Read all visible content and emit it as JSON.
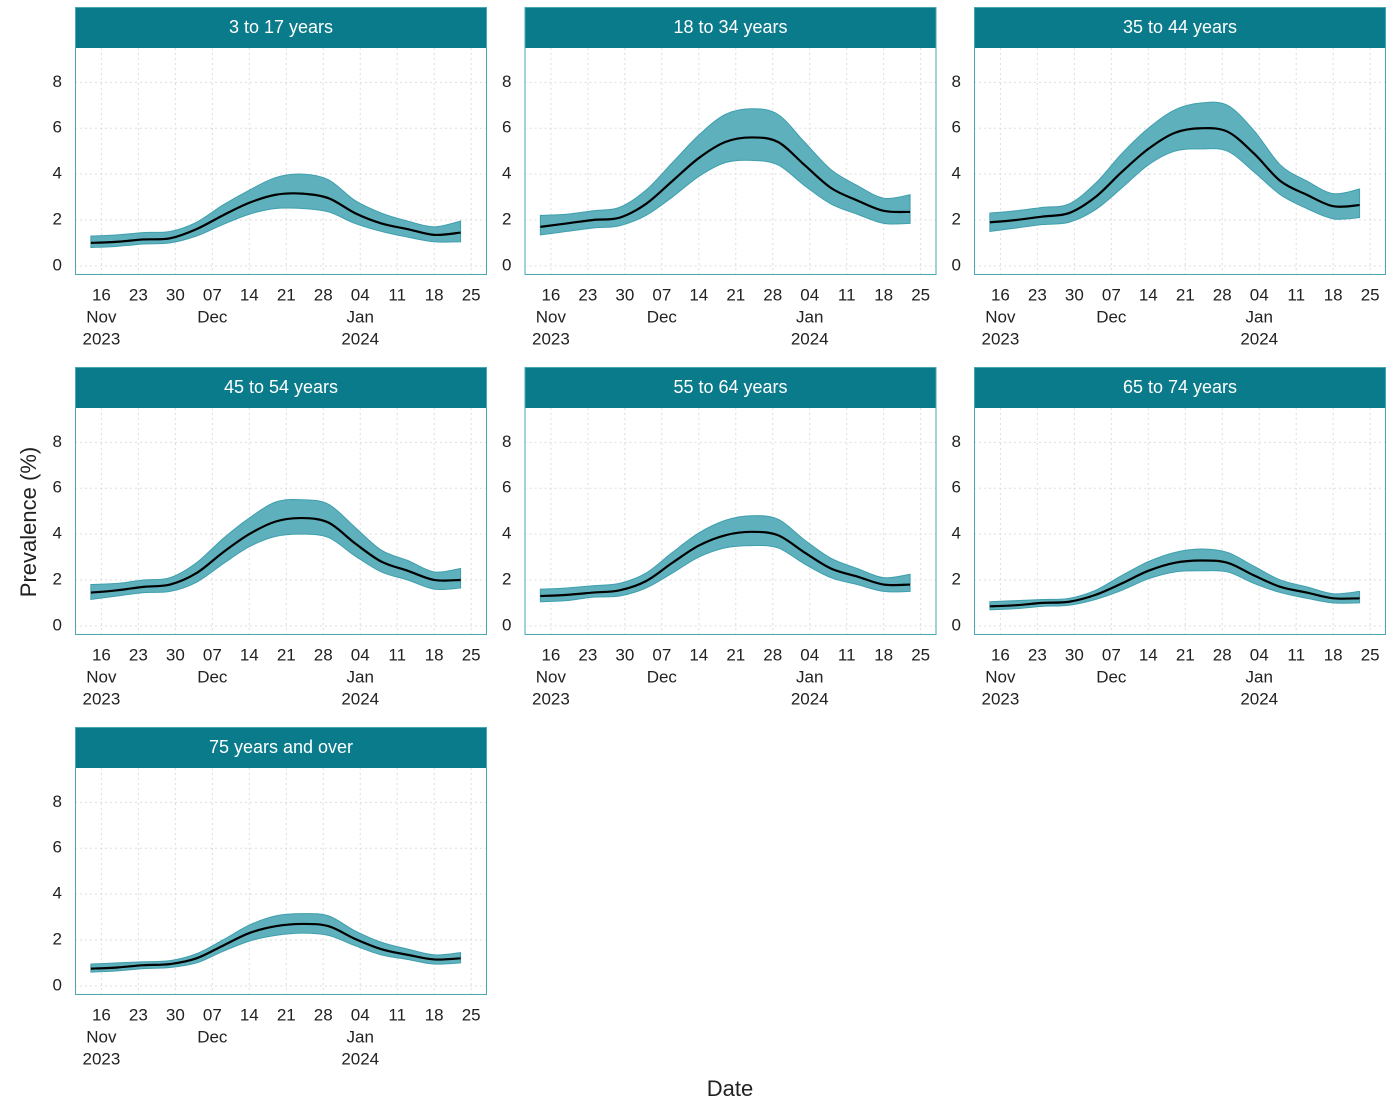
{
  "ylabel": "Prevalence (%)",
  "xlabel": "Date",
  "chart_data": [
    {
      "type": "line",
      "title": "3 to 17 years",
      "x": [
        "2023-11-14",
        "2023-11-19",
        "2023-11-24",
        "2023-11-29",
        "2023-12-04",
        "2023-12-09",
        "2023-12-14",
        "2023-12-19",
        "2023-12-24",
        "2023-12-29",
        "2024-01-03",
        "2024-01-08",
        "2024-01-13",
        "2024-01-18",
        "2024-01-23"
      ],
      "values": [
        1.0,
        1.05,
        1.15,
        1.2,
        1.6,
        2.2,
        2.75,
        3.1,
        3.15,
        2.95,
        2.3,
        1.85,
        1.6,
        1.35,
        1.45
      ],
      "lower": [
        0.8,
        0.85,
        0.95,
        1.0,
        1.3,
        1.8,
        2.25,
        2.5,
        2.5,
        2.35,
        1.85,
        1.5,
        1.25,
        1.05,
        1.05
      ],
      "upper": [
        1.3,
        1.35,
        1.45,
        1.5,
        1.9,
        2.65,
        3.3,
        3.85,
        4.0,
        3.75,
        2.85,
        2.3,
        1.95,
        1.7,
        1.95
      ],
      "color": "#000000",
      "band_color": "#5eb0bd",
      "xlim": [
        "2023-11-11",
        "2024-01-28"
      ],
      "xticks": [
        {
          "value": "2023-11-16",
          "label": "16"
        },
        {
          "value": "2023-11-23",
          "label": "23"
        },
        {
          "value": "2023-11-30",
          "label": "30"
        },
        {
          "value": "2023-12-07",
          "label": "07"
        },
        {
          "value": "2023-12-14",
          "label": "14"
        },
        {
          "value": "2023-12-21",
          "label": "21"
        },
        {
          "value": "2023-12-28",
          "label": "28"
        },
        {
          "value": "2024-01-04",
          "label": "04"
        },
        {
          "value": "2024-01-11",
          "label": "11"
        },
        {
          "value": "2024-01-18",
          "label": "18"
        },
        {
          "value": "2024-01-25",
          "label": "25"
        }
      ],
      "xtick_months": [
        {
          "value": "2023-11-16",
          "label": "Nov"
        },
        {
          "value": "2023-12-07",
          "label": "Dec"
        },
        {
          "value": "2024-01-04",
          "label": "Jan"
        }
      ],
      "xtick_years": [
        {
          "value": "2023-11-16",
          "label": "2023"
        },
        {
          "value": "2024-01-04",
          "label": "2024"
        }
      ],
      "ylim": [
        -0.4,
        9.5
      ],
      "yticks": [
        0,
        2,
        4,
        6,
        8
      ],
      "grid": true
    },
    {
      "type": "line",
      "title": "18 to 34 years",
      "x": [
        "2023-11-14",
        "2023-11-19",
        "2023-11-24",
        "2023-11-29",
        "2023-12-04",
        "2023-12-09",
        "2023-12-14",
        "2023-12-19",
        "2023-12-24",
        "2023-12-29",
        "2024-01-03",
        "2024-01-08",
        "2024-01-13",
        "2024-01-18",
        "2024-01-23"
      ],
      "values": [
        1.7,
        1.85,
        2.0,
        2.1,
        2.7,
        3.7,
        4.7,
        5.4,
        5.6,
        5.4,
        4.4,
        3.4,
        2.85,
        2.4,
        2.35
      ],
      "lower": [
        1.35,
        1.5,
        1.65,
        1.75,
        2.2,
        3.0,
        3.9,
        4.5,
        4.6,
        4.4,
        3.5,
        2.7,
        2.25,
        1.85,
        1.85
      ],
      "upper": [
        2.2,
        2.25,
        2.4,
        2.55,
        3.3,
        4.5,
        5.7,
        6.6,
        6.85,
        6.6,
        5.4,
        4.2,
        3.5,
        2.95,
        3.1
      ],
      "color": "#000000",
      "band_color": "#5eb0bd",
      "xlim": [
        "2023-11-11",
        "2024-01-28"
      ],
      "xticks": [
        {
          "value": "2023-11-16",
          "label": "16"
        },
        {
          "value": "2023-11-23",
          "label": "23"
        },
        {
          "value": "2023-11-30",
          "label": "30"
        },
        {
          "value": "2023-12-07",
          "label": "07"
        },
        {
          "value": "2023-12-14",
          "label": "14"
        },
        {
          "value": "2023-12-21",
          "label": "21"
        },
        {
          "value": "2023-12-28",
          "label": "28"
        },
        {
          "value": "2024-01-04",
          "label": "04"
        },
        {
          "value": "2024-01-11",
          "label": "11"
        },
        {
          "value": "2024-01-18",
          "label": "18"
        },
        {
          "value": "2024-01-25",
          "label": "25"
        }
      ],
      "xtick_months": [
        {
          "value": "2023-11-16",
          "label": "Nov"
        },
        {
          "value": "2023-12-07",
          "label": "Dec"
        },
        {
          "value": "2024-01-04",
          "label": "Jan"
        }
      ],
      "xtick_years": [
        {
          "value": "2023-11-16",
          "label": "2023"
        },
        {
          "value": "2024-01-04",
          "label": "2024"
        }
      ],
      "ylim": [
        -0.4,
        9.5
      ],
      "yticks": [
        0,
        2,
        4,
        6,
        8
      ],
      "grid": true
    },
    {
      "type": "line",
      "title": "35 to 44 years",
      "x": [
        "2023-11-14",
        "2023-11-19",
        "2023-11-24",
        "2023-11-29",
        "2023-12-04",
        "2023-12-09",
        "2023-12-14",
        "2023-12-19",
        "2023-12-24",
        "2023-12-29",
        "2024-01-03",
        "2024-01-08",
        "2024-01-13",
        "2024-01-18",
        "2024-01-23"
      ],
      "values": [
        1.9,
        2.0,
        2.15,
        2.3,
        3.0,
        4.1,
        5.1,
        5.8,
        6.0,
        5.85,
        4.9,
        3.7,
        3.1,
        2.6,
        2.65
      ],
      "lower": [
        1.5,
        1.65,
        1.8,
        1.9,
        2.45,
        3.4,
        4.4,
        5.0,
        5.1,
        5.0,
        4.1,
        3.1,
        2.5,
        2.05,
        2.1
      ],
      "upper": [
        2.3,
        2.4,
        2.55,
        2.7,
        3.6,
        4.9,
        6.0,
        6.8,
        7.1,
        7.0,
        5.9,
        4.4,
        3.7,
        3.15,
        3.35
      ],
      "color": "#000000",
      "band_color": "#5eb0bd",
      "xlim": [
        "2023-11-11",
        "2024-01-28"
      ],
      "xticks": [
        {
          "value": "2023-11-16",
          "label": "16"
        },
        {
          "value": "2023-11-23",
          "label": "23"
        },
        {
          "value": "2023-11-30",
          "label": "30"
        },
        {
          "value": "2023-12-07",
          "label": "07"
        },
        {
          "value": "2023-12-14",
          "label": "14"
        },
        {
          "value": "2023-12-21",
          "label": "21"
        },
        {
          "value": "2023-12-28",
          "label": "28"
        },
        {
          "value": "2024-01-04",
          "label": "04"
        },
        {
          "value": "2024-01-11",
          "label": "11"
        },
        {
          "value": "2024-01-18",
          "label": "18"
        },
        {
          "value": "2024-01-25",
          "label": "25"
        }
      ],
      "xtick_months": [
        {
          "value": "2023-11-16",
          "label": "Nov"
        },
        {
          "value": "2023-12-07",
          "label": "Dec"
        },
        {
          "value": "2024-01-04",
          "label": "Jan"
        }
      ],
      "xtick_years": [
        {
          "value": "2023-11-16",
          "label": "2023"
        },
        {
          "value": "2024-01-04",
          "label": "2024"
        }
      ],
      "ylim": [
        -0.4,
        9.5
      ],
      "yticks": [
        0,
        2,
        4,
        6,
        8
      ],
      "grid": true
    },
    {
      "type": "line",
      "title": "45 to 54 years",
      "x": [
        "2023-11-14",
        "2023-11-19",
        "2023-11-24",
        "2023-11-29",
        "2023-12-04",
        "2023-12-09",
        "2023-12-14",
        "2023-12-19",
        "2023-12-24",
        "2023-12-29",
        "2024-01-03",
        "2024-01-08",
        "2024-01-13",
        "2024-01-18",
        "2024-01-23"
      ],
      "values": [
        1.45,
        1.55,
        1.7,
        1.8,
        2.3,
        3.2,
        4.0,
        4.55,
        4.7,
        4.5,
        3.6,
        2.8,
        2.4,
        2.0,
        2.0
      ],
      "lower": [
        1.15,
        1.3,
        1.45,
        1.5,
        1.9,
        2.7,
        3.45,
        3.9,
        4.0,
        3.85,
        3.05,
        2.35,
        2.0,
        1.6,
        1.65
      ],
      "upper": [
        1.8,
        1.85,
        2.0,
        2.1,
        2.75,
        3.8,
        4.7,
        5.4,
        5.5,
        5.3,
        4.3,
        3.3,
        2.85,
        2.35,
        2.5
      ],
      "color": "#000000",
      "band_color": "#5eb0bd",
      "xlim": [
        "2023-11-11",
        "2024-01-28"
      ],
      "xticks": [
        {
          "value": "2023-11-16",
          "label": "16"
        },
        {
          "value": "2023-11-23",
          "label": "23"
        },
        {
          "value": "2023-11-30",
          "label": "30"
        },
        {
          "value": "2023-12-07",
          "label": "07"
        },
        {
          "value": "2023-12-14",
          "label": "14"
        },
        {
          "value": "2023-12-21",
          "label": "21"
        },
        {
          "value": "2023-12-28",
          "label": "28"
        },
        {
          "value": "2024-01-04",
          "label": "04"
        },
        {
          "value": "2024-01-11",
          "label": "11"
        },
        {
          "value": "2024-01-18",
          "label": "18"
        },
        {
          "value": "2024-01-25",
          "label": "25"
        }
      ],
      "xtick_months": [
        {
          "value": "2023-11-16",
          "label": "Nov"
        },
        {
          "value": "2023-12-07",
          "label": "Dec"
        },
        {
          "value": "2024-01-04",
          "label": "Jan"
        }
      ],
      "xtick_years": [
        {
          "value": "2023-11-16",
          "label": "2023"
        },
        {
          "value": "2024-01-04",
          "label": "2024"
        }
      ],
      "ylim": [
        -0.4,
        9.5
      ],
      "yticks": [
        0,
        2,
        4,
        6,
        8
      ],
      "grid": true
    },
    {
      "type": "line",
      "title": "55 to 64 years",
      "x": [
        "2023-11-14",
        "2023-11-19",
        "2023-11-24",
        "2023-11-29",
        "2023-12-04",
        "2023-12-09",
        "2023-12-14",
        "2023-12-19",
        "2023-12-24",
        "2023-12-29",
        "2024-01-03",
        "2024-01-08",
        "2024-01-13",
        "2024-01-18",
        "2024-01-23"
      ],
      "values": [
        1.3,
        1.35,
        1.45,
        1.55,
        1.95,
        2.75,
        3.5,
        3.95,
        4.1,
        3.95,
        3.2,
        2.5,
        2.15,
        1.8,
        1.8
      ],
      "lower": [
        1.05,
        1.1,
        1.25,
        1.3,
        1.65,
        2.3,
        3.0,
        3.4,
        3.5,
        3.4,
        2.7,
        2.1,
        1.8,
        1.5,
        1.5
      ],
      "upper": [
        1.6,
        1.65,
        1.75,
        1.85,
        2.3,
        3.2,
        4.05,
        4.6,
        4.8,
        4.65,
        3.75,
        2.95,
        2.5,
        2.1,
        2.25
      ],
      "color": "#000000",
      "band_color": "#5eb0bd",
      "xlim": [
        "2023-11-11",
        "2024-01-28"
      ],
      "xticks": [
        {
          "value": "2023-11-16",
          "label": "16"
        },
        {
          "value": "2023-11-23",
          "label": "23"
        },
        {
          "value": "2023-11-30",
          "label": "30"
        },
        {
          "value": "2023-12-07",
          "label": "07"
        },
        {
          "value": "2023-12-14",
          "label": "14"
        },
        {
          "value": "2023-12-21",
          "label": "21"
        },
        {
          "value": "2023-12-28",
          "label": "28"
        },
        {
          "value": "2024-01-04",
          "label": "04"
        },
        {
          "value": "2024-01-11",
          "label": "11"
        },
        {
          "value": "2024-01-18",
          "label": "18"
        },
        {
          "value": "2024-01-25",
          "label": "25"
        }
      ],
      "xtick_months": [
        {
          "value": "2023-11-16",
          "label": "Nov"
        },
        {
          "value": "2023-12-07",
          "label": "Dec"
        },
        {
          "value": "2024-01-04",
          "label": "Jan"
        }
      ],
      "xtick_years": [
        {
          "value": "2023-11-16",
          "label": "2023"
        },
        {
          "value": "2024-01-04",
          "label": "2024"
        }
      ],
      "ylim": [
        -0.4,
        9.5
      ],
      "yticks": [
        0,
        2,
        4,
        6,
        8
      ],
      "grid": true
    },
    {
      "type": "line",
      "title": "65 to 74 years",
      "x": [
        "2023-11-14",
        "2023-11-19",
        "2023-11-24",
        "2023-11-29",
        "2023-12-04",
        "2023-12-09",
        "2023-12-14",
        "2023-12-19",
        "2023-12-24",
        "2023-12-29",
        "2024-01-03",
        "2024-01-08",
        "2024-01-13",
        "2024-01-18",
        "2024-01-23"
      ],
      "values": [
        0.85,
        0.9,
        1.0,
        1.05,
        1.35,
        1.85,
        2.4,
        2.75,
        2.85,
        2.75,
        2.2,
        1.7,
        1.45,
        1.2,
        1.2
      ],
      "lower": [
        0.7,
        0.75,
        0.85,
        0.9,
        1.15,
        1.55,
        2.05,
        2.35,
        2.4,
        2.35,
        1.85,
        1.45,
        1.2,
        1.0,
        1.0
      ],
      "upper": [
        1.05,
        1.1,
        1.15,
        1.2,
        1.55,
        2.2,
        2.8,
        3.2,
        3.35,
        3.2,
        2.6,
        2.0,
        1.7,
        1.4,
        1.5
      ],
      "color": "#000000",
      "band_color": "#5eb0bd",
      "xlim": [
        "2023-11-11",
        "2024-01-28"
      ],
      "xticks": [
        {
          "value": "2023-11-16",
          "label": "16"
        },
        {
          "value": "2023-11-23",
          "label": "23"
        },
        {
          "value": "2023-11-30",
          "label": "30"
        },
        {
          "value": "2023-12-07",
          "label": "07"
        },
        {
          "value": "2023-12-14",
          "label": "14"
        },
        {
          "value": "2023-12-21",
          "label": "21"
        },
        {
          "value": "2023-12-28",
          "label": "28"
        },
        {
          "value": "2024-01-04",
          "label": "04"
        },
        {
          "value": "2024-01-11",
          "label": "11"
        },
        {
          "value": "2024-01-18",
          "label": "18"
        },
        {
          "value": "2024-01-25",
          "label": "25"
        }
      ],
      "xtick_months": [
        {
          "value": "2023-11-16",
          "label": "Nov"
        },
        {
          "value": "2023-12-07",
          "label": "Dec"
        },
        {
          "value": "2024-01-04",
          "label": "Jan"
        }
      ],
      "xtick_years": [
        {
          "value": "2023-11-16",
          "label": "2023"
        },
        {
          "value": "2024-01-04",
          "label": "2024"
        }
      ],
      "ylim": [
        -0.4,
        9.5
      ],
      "yticks": [
        0,
        2,
        4,
        6,
        8
      ],
      "grid": true
    },
    {
      "type": "line",
      "title": "75 years and over",
      "x": [
        "2023-11-14",
        "2023-11-19",
        "2023-11-24",
        "2023-11-29",
        "2023-12-04",
        "2023-12-09",
        "2023-12-14",
        "2023-12-19",
        "2023-12-24",
        "2023-12-29",
        "2024-01-03",
        "2024-01-08",
        "2024-01-13",
        "2024-01-18",
        "2024-01-23"
      ],
      "values": [
        0.75,
        0.8,
        0.9,
        0.95,
        1.2,
        1.75,
        2.3,
        2.6,
        2.7,
        2.6,
        2.05,
        1.6,
        1.35,
        1.15,
        1.2
      ],
      "lower": [
        0.6,
        0.65,
        0.75,
        0.8,
        1.0,
        1.5,
        1.95,
        2.2,
        2.3,
        2.2,
        1.75,
        1.35,
        1.15,
        0.95,
        1.0
      ],
      "upper": [
        0.95,
        1.0,
        1.05,
        1.1,
        1.4,
        2.0,
        2.65,
        3.05,
        3.15,
        3.05,
        2.4,
        1.9,
        1.6,
        1.35,
        1.45
      ],
      "color": "#000000",
      "band_color": "#5eb0bd",
      "xlim": [
        "2023-11-11",
        "2024-01-28"
      ],
      "xticks": [
        {
          "value": "2023-11-16",
          "label": "16"
        },
        {
          "value": "2023-11-23",
          "label": "23"
        },
        {
          "value": "2023-11-30",
          "label": "30"
        },
        {
          "value": "2023-12-07",
          "label": "07"
        },
        {
          "value": "2023-12-14",
          "label": "14"
        },
        {
          "value": "2023-12-21",
          "label": "21"
        },
        {
          "value": "2023-12-28",
          "label": "28"
        },
        {
          "value": "2024-01-04",
          "label": "04"
        },
        {
          "value": "2024-01-11",
          "label": "11"
        },
        {
          "value": "2024-01-18",
          "label": "18"
        },
        {
          "value": "2024-01-25",
          "label": "25"
        }
      ],
      "xtick_months": [
        {
          "value": "2023-11-16",
          "label": "Nov"
        },
        {
          "value": "2023-12-07",
          "label": "Dec"
        },
        {
          "value": "2024-01-04",
          "label": "Jan"
        }
      ],
      "xtick_years": [
        {
          "value": "2023-11-16",
          "label": "2023"
        },
        {
          "value": "2024-01-04",
          "label": "2024"
        }
      ],
      "ylim": [
        -0.4,
        9.5
      ],
      "yticks": [
        0,
        2,
        4,
        6,
        8
      ],
      "grid": true
    }
  ]
}
